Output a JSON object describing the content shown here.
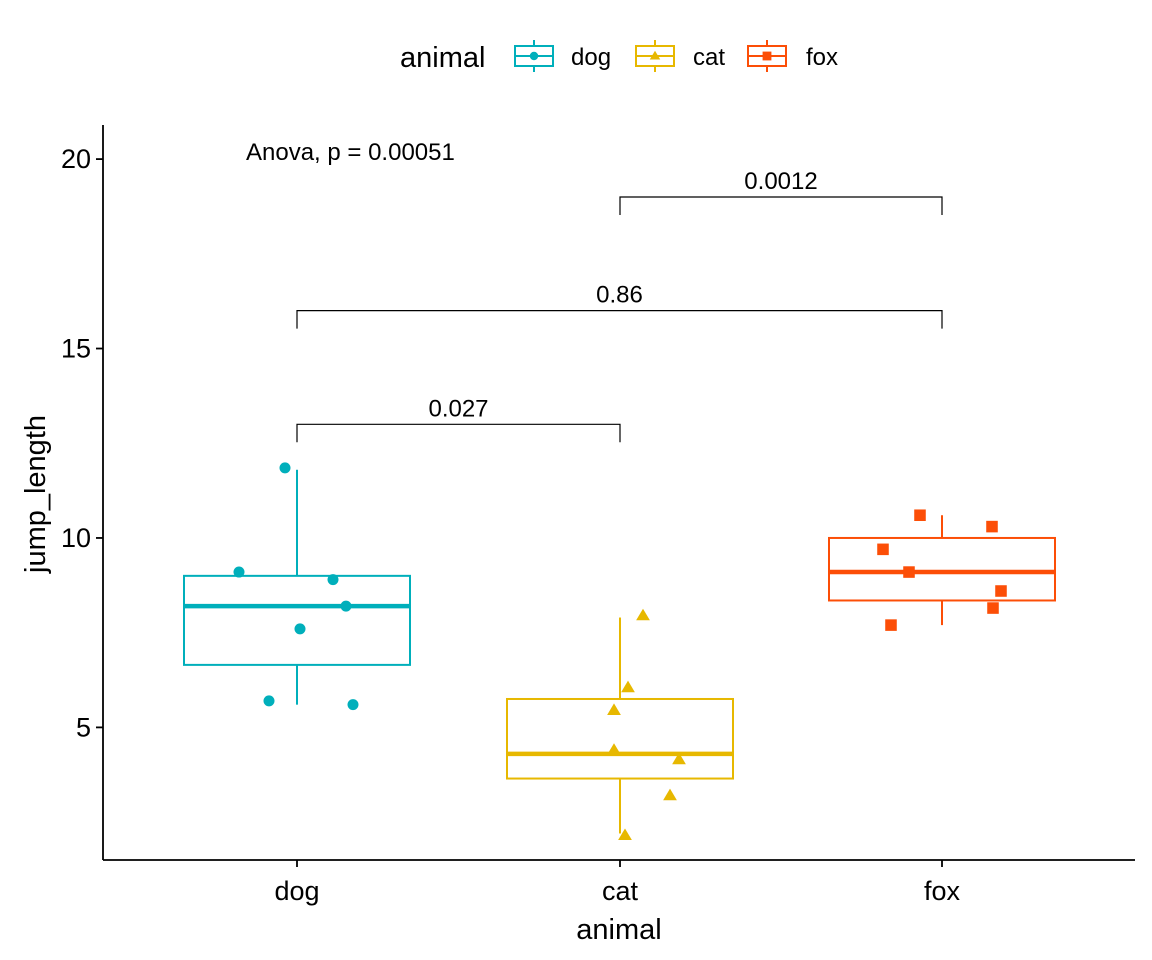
{
  "chart_data": {
    "type": "boxplot",
    "xlabel": "animal",
    "ylabel": "jump_length",
    "ylim": [
      1.5,
      20.9
    ],
    "yticks": [
      5,
      10,
      15,
      20
    ],
    "categories": [
      "dog",
      "cat",
      "fox"
    ],
    "legend": {
      "title": "animal",
      "position": "top",
      "entries": [
        "dog",
        "cat",
        "fox"
      ]
    },
    "grid": false,
    "series": [
      {
        "name": "dog",
        "color": "#00AFBB",
        "marker": "circle",
        "box": {
          "whisker_low": 5.6,
          "q1": 6.65,
          "median": 8.2,
          "q3": 9.0,
          "whisker_high": 11.8
        },
        "points": [
          11.85,
          9.1,
          8.9,
          8.2,
          7.6,
          5.7,
          5.6
        ]
      },
      {
        "name": "cat",
        "color": "#E7B800",
        "marker": "triangle",
        "box": {
          "whisker_low": 2.2,
          "q1": 3.65,
          "median": 4.3,
          "q3": 5.75,
          "whisker_high": 7.9
        },
        "points": [
          7.95,
          6.05,
          5.45,
          4.4,
          4.15,
          3.2,
          2.15
        ]
      },
      {
        "name": "fox",
        "color": "#FC4E07",
        "marker": "square",
        "box": {
          "whisker_low": 7.7,
          "q1": 8.35,
          "median": 9.1,
          "q3": 10.0,
          "whisker_high": 10.6
        },
        "points": [
          10.6,
          10.3,
          9.7,
          9.1,
          8.6,
          8.15,
          7.7
        ]
      }
    ],
    "anova_label": "Anova, p = 0.00051",
    "comparisons": [
      {
        "groups": [
          "dog",
          "cat"
        ],
        "label": "0.027",
        "y": 13.0
      },
      {
        "groups": [
          "dog",
          "fox"
        ],
        "label": "0.86",
        "y": 16.0
      },
      {
        "groups": [
          "cat",
          "fox"
        ],
        "label": "0.0012",
        "y": 19.0
      }
    ]
  }
}
